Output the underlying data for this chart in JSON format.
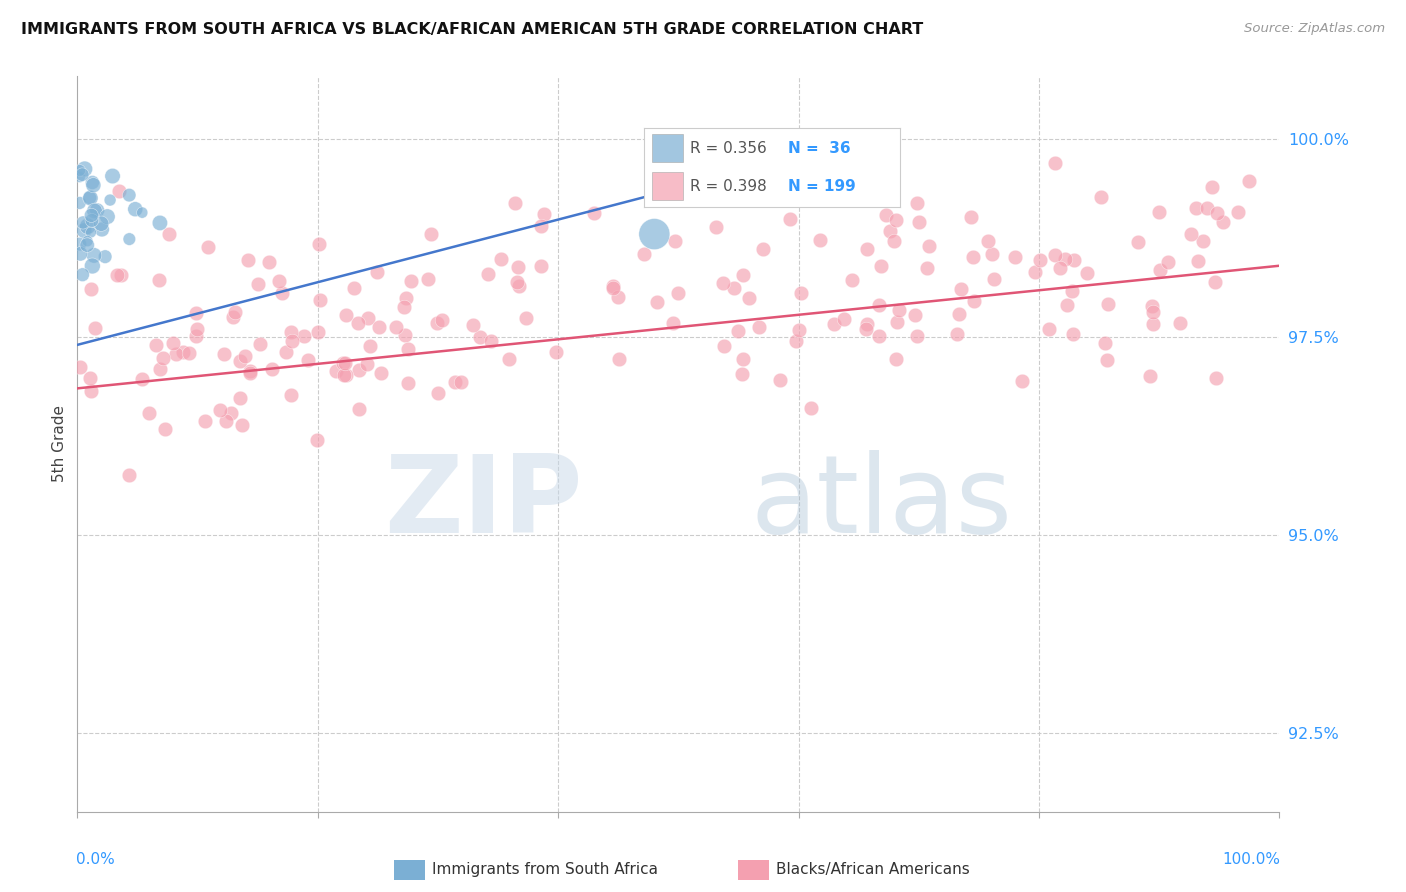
{
  "title": "IMMIGRANTS FROM SOUTH AFRICA VS BLACK/AFRICAN AMERICAN 5TH GRADE CORRELATION CHART",
  "source": "Source: ZipAtlas.com",
  "ylabel": "5th Grade",
  "xlim": [
    0.0,
    1.0
  ],
  "ylim": [
    0.915,
    1.008
  ],
  "yticks": [
    0.925,
    0.95,
    0.975,
    1.0
  ],
  "ytick_labels": [
    "92.5%",
    "95.0%",
    "97.5%",
    "100.0%"
  ],
  "blue_R": 0.356,
  "blue_N": 36,
  "pink_R": 0.398,
  "pink_N": 199,
  "blue_color": "#7bafd4",
  "pink_color": "#f4a0b0",
  "blue_line_color": "#4477cc",
  "pink_line_color": "#e05575",
  "legend_label_blue": "Immigrants from South Africa",
  "legend_label_pink": "Blacks/African Americans"
}
